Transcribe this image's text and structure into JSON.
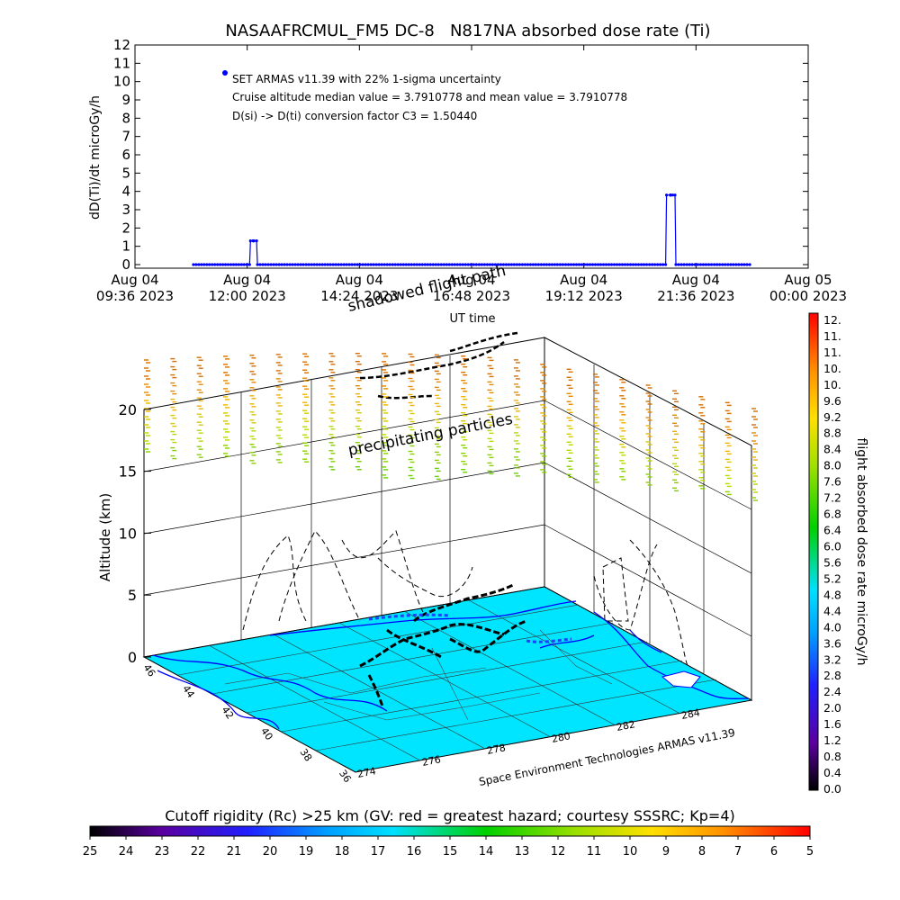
{
  "chart_data": [
    {
      "type": "line",
      "title": "NASAAFRCMUL_FM5 DC-8   N817NA absorbed dose rate (Ti)",
      "ylabel": "dD(Ti)/dt microGy/h",
      "xlabel": "UT time",
      "ylim": [
        0,
        12
      ],
      "xlim_hours": [
        9.6,
        24.0
      ],
      "y_ticks": [
        "0",
        "1",
        "2",
        "3",
        "4",
        "5",
        "6",
        "7",
        "8",
        "9",
        "10",
        "11",
        "12"
      ],
      "x_ticks": [
        {
          "top": "Aug 04",
          "bottom": "09:36 2023",
          "h": 9.6
        },
        {
          "top": "Aug 04",
          "bottom": "12:00 2023",
          "h": 12.0
        },
        {
          "top": "Aug 04",
          "bottom": "14:24 2023",
          "h": 14.4
        },
        {
          "top": "Aug 04",
          "bottom": "16:48 2023",
          "h": 16.8
        },
        {
          "top": "Aug 04",
          "bottom": "19:12 2023",
          "h": 19.2
        },
        {
          "top": "Aug 04",
          "bottom": "21:36 2023",
          "h": 21.6
        },
        {
          "top": "Aug 05",
          "bottom": "00:00 2023",
          "h": 24.0
        }
      ],
      "annotations": [
        "SET ARMAS v11.39 with 22% 1-sigma uncertainty",
        "Cruise altitude median value = 3.7910778 and mean value = 3.7910778",
        "D(si) -> D(ti) conversion factor C3 = 1.50440"
      ],
      "series": [
        {
          "color": "#0000ff",
          "x_hours": [
            10.85,
            12.05,
            12.06,
            12.07,
            12.13,
            12.14,
            12.2,
            12.21,
            12.22,
            20.95,
            20.96,
            20.97,
            21.05,
            21.06,
            21.15,
            21.16,
            21.17,
            22.75
          ],
          "y": [
            0,
            0,
            0.6,
            1.3,
            1.3,
            1.3,
            1.3,
            0.6,
            0,
            0,
            1.9,
            3.8,
            3.8,
            3.8,
            3.8,
            1.9,
            0,
            0
          ]
        }
      ]
    },
    {
      "type": "other",
      "subtype": "3d-flight-track",
      "zlabel": "Altitude (km)",
      "z_ticks": [
        "0",
        "5",
        "10",
        "15",
        "20"
      ],
      "lat_ticks": [
        "46",
        "44",
        "42",
        "40",
        "38",
        "36"
      ],
      "lon_ticks": [
        "274",
        "276",
        "278",
        "280",
        "282",
        "284"
      ],
      "labels": {
        "shadow": "shadowed flight path",
        "precip": "precipitating particles",
        "credit": "Space Environment Technologies ARMAS v11.39"
      },
      "ocean_color": "#00e5ff"
    },
    {
      "type": "other",
      "subtype": "colorbar",
      "label": "flight absorbed dose rate microGy/h",
      "ticks": [
        "0.0",
        "0.4",
        "0.8",
        "1.2",
        "1.6",
        "2.0",
        "2.4",
        "2.8",
        "3.2",
        "3.6",
        "4.0",
        "4.4",
        "4.8",
        "5.2",
        "5.6",
        "6.0",
        "6.4",
        "6.8",
        "7.2",
        "7.6",
        "8.0",
        "8.4",
        "8.8",
        "9.2",
        "9.6",
        "10.",
        "10.",
        "11.",
        "11.",
        "12."
      ]
    },
    {
      "type": "other",
      "subtype": "colorbar",
      "label": "Cutoff rigidity (Rc) >25 km (GV: red = greatest hazard; courtesy SSSRC; Kp=4)",
      "ticks": [
        "25",
        "24",
        "23",
        "22",
        "21",
        "20",
        "19",
        "18",
        "17",
        "16",
        "15",
        "14",
        "13",
        "12",
        "11",
        "10",
        "9",
        "8",
        "7",
        "6",
        "5"
      ]
    }
  ]
}
